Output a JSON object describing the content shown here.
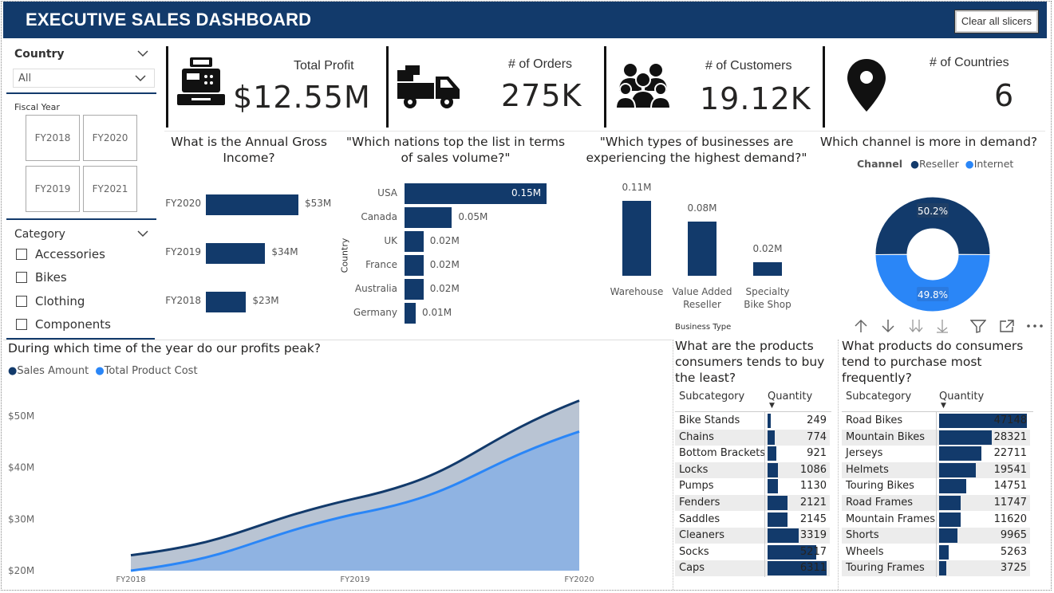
{
  "header": {
    "title": "EXECUTIVE SALES DASHBOARD",
    "clear_button": "Clear all slicers"
  },
  "slicers": {
    "country": {
      "label": "Country",
      "value": "All"
    },
    "fiscal_year": {
      "label": "Fiscal Year",
      "options": [
        "FY2018",
        "FY2020",
        "FY2019",
        "FY2021"
      ]
    },
    "category": {
      "label": "Category",
      "options": [
        "Accessories",
        "Bikes",
        "Clothing",
        "Components"
      ]
    }
  },
  "kpis": [
    {
      "label": "Total Profit",
      "value": "$12.55M",
      "icon": "cash-register-icon"
    },
    {
      "label": "# of Orders",
      "value": "275K",
      "icon": "truck-icon"
    },
    {
      "label": "# of Customers",
      "value": "19.12K",
      "icon": "people-icon"
    },
    {
      "label": "# of Countries",
      "value": "6",
      "icon": "map-pin-icon"
    }
  ],
  "visual_toolbar": [
    "arrow-up-icon",
    "arrow-down-icon",
    "double-arrow-down-icon",
    "expand-hierarchy-icon",
    "filter-icon",
    "focus-mode-icon",
    "more-options-icon"
  ],
  "chart_data": [
    {
      "type": "bar",
      "title": "What is the Annual Gross Income?",
      "orientation": "horizontal",
      "categories": [
        "FY2020",
        "FY2019",
        "FY2018"
      ],
      "values": [
        53,
        34,
        23
      ],
      "unit": "M",
      "labels": [
        "$53M",
        "$34M",
        "$23M"
      ]
    },
    {
      "type": "bar",
      "title": "\"Which nations top the list in terms of sales volume?\"",
      "orientation": "horizontal",
      "ylabel": "Country",
      "categories": [
        "USA",
        "Canada",
        "UK",
        "France",
        "Australia",
        "Germany"
      ],
      "values": [
        0.15,
        0.05,
        0.02,
        0.02,
        0.02,
        0.01
      ],
      "labels": [
        "0.15M",
        "0.05M",
        "0.02M",
        "0.02M",
        "0.02M",
        "0.01M"
      ]
    },
    {
      "type": "bar",
      "title": "\"Which types of businesses are experiencing the highest demand?\"",
      "xlabel": "Business Type",
      "categories": [
        "Warehouse",
        "Value Added Reseller",
        "Specialty Bike Shop"
      ],
      "values": [
        0.11,
        0.08,
        0.02
      ],
      "labels": [
        "0.11M",
        "0.08M",
        "0.02M"
      ]
    },
    {
      "type": "pie",
      "title": "Which channel is more in demand?",
      "legend_title": "Channel",
      "series": [
        {
          "name": "Reseller",
          "value": 50.2,
          "label": "50.2%",
          "color": "#123a6b"
        },
        {
          "name": "Internet",
          "value": 49.8,
          "label": "49.8%",
          "color": "#2a86f7"
        }
      ]
    },
    {
      "type": "area",
      "title": "During which time of the year do our profits peak?",
      "x": [
        "FY2018",
        "FY2019",
        "FY2020"
      ],
      "y_ticks": [
        "$50M",
        "$40M",
        "$30M",
        "$20M"
      ],
      "ylim": [
        20,
        53
      ],
      "series": [
        {
          "name": "Sales Amount",
          "values": [
            23,
            34,
            53
          ],
          "color": "#123a6b"
        },
        {
          "name": "Total Product Cost",
          "values": [
            20,
            31,
            47
          ],
          "color": "#2a86f7"
        }
      ]
    },
    {
      "type": "table",
      "title": "What are the products consumers tends to buy the least?",
      "columns": [
        "Subcategory",
        "Quantity"
      ],
      "rows": [
        [
          "Bike Stands",
          249
        ],
        [
          "Chains",
          774
        ],
        [
          "Bottom Brackets",
          921
        ],
        [
          "Locks",
          1086
        ],
        [
          "Pumps",
          1130
        ],
        [
          "Fenders",
          2121
        ],
        [
          "Saddles",
          2145
        ],
        [
          "Cleaners",
          3319
        ],
        [
          "Socks",
          5217
        ],
        [
          "Caps",
          6311
        ]
      ]
    },
    {
      "type": "table",
      "title": "What products do consumers tend to purchase most frequently?",
      "columns": [
        "Subcategory",
        "Quantity"
      ],
      "rows": [
        [
          "Road Bikes",
          47148
        ],
        [
          "Mountain Bikes",
          28321
        ],
        [
          "Jerseys",
          22711
        ],
        [
          "Helmets",
          19541
        ],
        [
          "Touring Bikes",
          14751
        ],
        [
          "Road Frames",
          11747
        ],
        [
          "Mountain Frames",
          11620
        ],
        [
          "Shorts",
          9965
        ],
        [
          "Wheels",
          5263
        ],
        [
          "Touring Frames",
          3725
        ]
      ]
    }
  ]
}
